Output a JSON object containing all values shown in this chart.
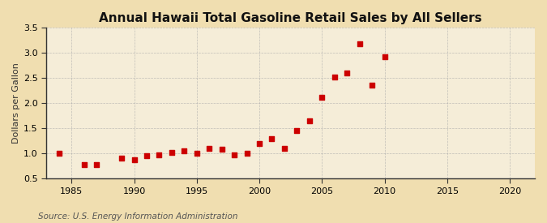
{
  "title": "Annual Hawaii Total Gasoline Retail Sales by All Sellers",
  "ylabel": "Dollars per Gallon",
  "source": "Source: U.S. Energy Information Administration",
  "fig_background_color": "#f0deb0",
  "plot_background_color": "#f5edd8",
  "marker_color": "#cc0000",
  "xlim": [
    1983,
    2022
  ],
  "ylim": [
    0.5,
    3.5
  ],
  "xticks": [
    1985,
    1990,
    1995,
    2000,
    2005,
    2010,
    2015,
    2020
  ],
  "yticks": [
    0.5,
    1.0,
    1.5,
    2.0,
    2.5,
    3.0,
    3.5
  ],
  "years": [
    1984,
    1986,
    1987,
    1989,
    1990,
    1991,
    1992,
    1993,
    1994,
    1995,
    1996,
    1997,
    1998,
    1999,
    2000,
    2001,
    2002,
    2003,
    2004,
    2005,
    2006,
    2007,
    2008,
    2009,
    2010
  ],
  "values": [
    1.0,
    0.78,
    0.78,
    0.9,
    0.88,
    0.95,
    0.97,
    1.02,
    1.05,
    1.0,
    1.1,
    1.08,
    0.97,
    1.0,
    1.2,
    1.3,
    1.1,
    1.45,
    1.65,
    2.12,
    2.52,
    2.6,
    3.18,
    2.35,
    2.92
  ],
  "title_fontsize": 11,
  "axis_label_fontsize": 8,
  "tick_fontsize": 8,
  "source_fontsize": 7.5,
  "grid_color": "#aaaaaa",
  "spine_color": "#333333",
  "marker_size": 14
}
